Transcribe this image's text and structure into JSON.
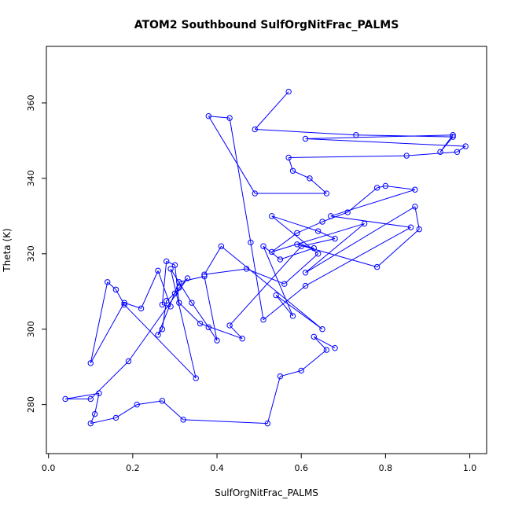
{
  "chart_data": {
    "type": "scatter",
    "title": "ATOM2 Southbound SulfOrgNitFrac_PALMS",
    "xlabel": "SulfOrgNitFrac_PALMS",
    "ylabel": "Theta (K)",
    "xlim": [
      -0.005,
      1.04
    ],
    "ylim": [
      267,
      375
    ],
    "xticks": [
      0.0,
      0.2,
      0.4,
      0.6,
      0.8,
      1.0
    ],
    "xtick_labels": [
      "0.0",
      "0.2",
      "0.4",
      "0.6",
      "0.8",
      "1.0"
    ],
    "yticks": [
      280,
      300,
      320,
      340,
      360
    ],
    "ytick_labels": [
      "280",
      "300",
      "320",
      "340",
      "360"
    ],
    "grid": false,
    "connected": true,
    "color": "#0000ff",
    "series": [
      {
        "x": [
          0.57,
          0.49,
          0.73,
          0.96,
          0.93,
          0.96,
          0.61,
          0.99,
          0.97,
          0.85,
          0.57,
          0.58,
          0.62,
          0.66,
          0.49,
          0.38,
          0.43,
          0.48,
          0.51,
          0.61,
          0.86,
          0.67,
          0.87,
          0.8,
          0.78,
          0.71,
          0.65,
          0.59,
          0.53,
          0.75,
          0.61,
          0.87,
          0.88,
          0.78,
          0.59,
          0.63,
          0.55,
          0.51,
          0.58,
          0.54,
          0.65,
          0.41,
          0.37,
          0.47,
          0.56,
          0.64,
          0.53,
          0.64,
          0.68,
          0.6,
          0.43,
          0.46,
          0.36,
          0.31,
          0.3,
          0.28,
          0.27,
          0.29,
          0.26,
          0.22,
          0.18,
          0.1,
          0.14,
          0.16,
          0.18,
          0.35,
          0.29,
          0.34,
          0.38,
          0.4,
          0.37,
          0.31,
          0.26,
          0.27,
          0.28,
          0.3,
          0.31,
          0.33,
          0.19,
          0.1,
          0.04,
          0.12,
          0.11,
          0.1,
          0.16,
          0.21,
          0.27,
          0.32,
          0.52,
          0.55,
          0.6,
          0.66,
          0.63,
          0.68
        ],
        "y": [
          363,
          353,
          351.5,
          351,
          347,
          351.5,
          350.5,
          348.5,
          347,
          346,
          345.5,
          342,
          340,
          336,
          336,
          356.5,
          356,
          323,
          302.5,
          311.5,
          327,
          330,
          337,
          338,
          337.5,
          331,
          328.5,
          325.5,
          320.5,
          328,
          315,
          332.5,
          326.5,
          316.5,
          322.5,
          321.5,
          318.5,
          322,
          303.5,
          309,
          300,
          322,
          314.5,
          316,
          312,
          320,
          330,
          326,
          324,
          322,
          301,
          297.5,
          301.5,
          307,
          317,
          318,
          306.5,
          306,
          315.5,
          305.5,
          307,
          291,
          312.5,
          310.5,
          306.5,
          287,
          316,
          307,
          300.5,
          297,
          314,
          312.5,
          298.5,
          300,
          307.5,
          309.5,
          311,
          313.5,
          291.5,
          281.5,
          281.5,
          283,
          277.5,
          275,
          276.5,
          280,
          281,
          276,
          275,
          287.5,
          289,
          294.5,
          298,
          295
        ]
      }
    ]
  }
}
